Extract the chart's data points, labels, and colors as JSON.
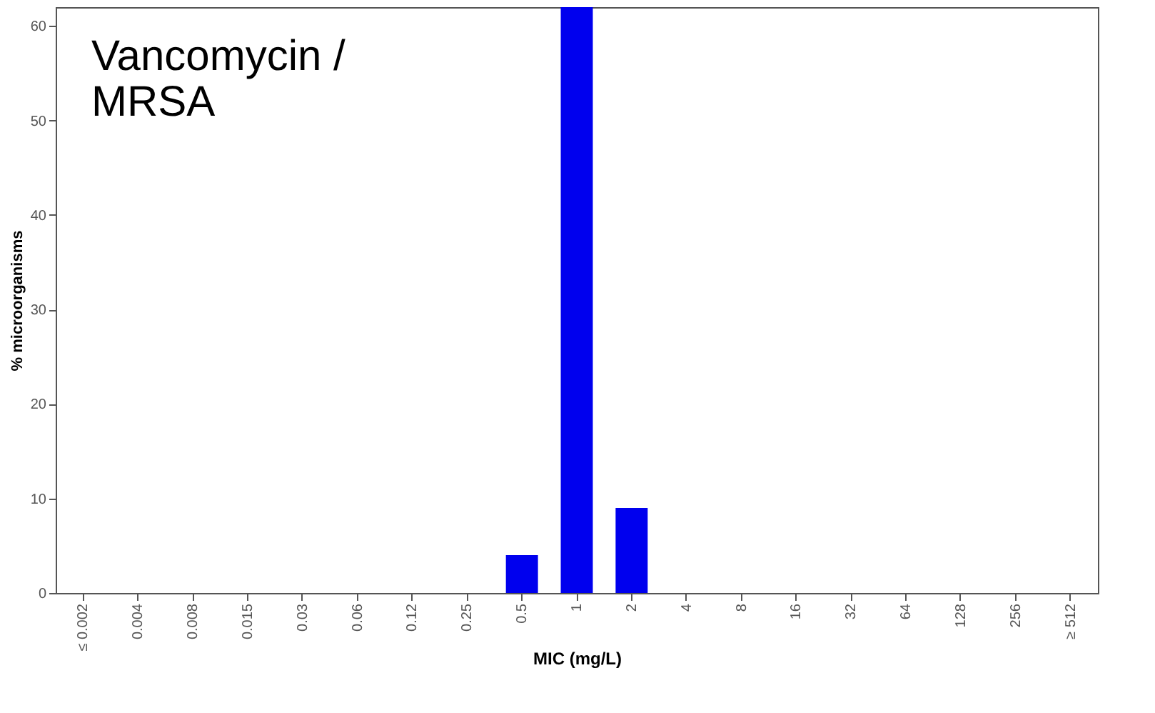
{
  "chart_data": {
    "type": "bar",
    "title": "Vancomycin /\nMRSA",
    "xlabel": "MIC (mg/L)",
    "ylabel": "% microorganisms",
    "categories": [
      "≤ 0.002",
      "0.004",
      "0.008",
      "0.015",
      "0.03",
      "0.06",
      "0.12",
      "0.25",
      "0.5",
      "1",
      "2",
      "4",
      "8",
      "16",
      "32",
      "64",
      "128",
      "256",
      "≥ 512"
    ],
    "values": [
      0,
      0,
      0,
      0,
      0,
      0,
      0,
      0,
      4,
      62,
      9,
      0,
      0,
      0,
      0,
      0,
      0,
      0,
      0
    ],
    "color": "#0000ee",
    "ylim": [
      0,
      62
    ],
    "yticks": [
      0,
      10,
      20,
      30,
      40,
      50,
      60
    ],
    "grid": false
  }
}
